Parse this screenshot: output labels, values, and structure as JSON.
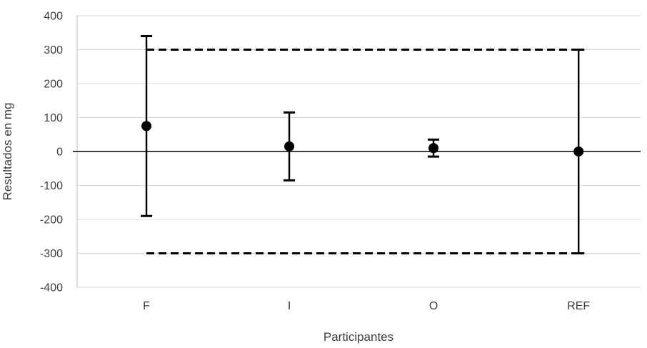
{
  "figure": {
    "background": "#ffffff"
  },
  "chart_data": {
    "type": "scatter",
    "subtype": "error-bar-plot",
    "title": "",
    "xlabel": "Participantes",
    "ylabel": "Resultados en mg",
    "categories": [
      "F",
      "I",
      "O",
      "REF"
    ],
    "points": [
      {
        "category": "F",
        "value": 75,
        "error_high": 340,
        "error_low": -190
      },
      {
        "category": "I",
        "value": 15,
        "error_high": 115,
        "error_low": -85
      },
      {
        "category": "O",
        "value": 10,
        "error_high": 35,
        "error_low": -15
      },
      {
        "category": "REF",
        "value": 0,
        "error_high": 300,
        "error_low": -300
      }
    ],
    "reference_lines": [
      {
        "value": 300,
        "style": "dashed"
      },
      {
        "value": -300,
        "style": "dashed"
      }
    ],
    "zero_line": true,
    "ylim": [
      -400,
      400
    ],
    "yticks": [
      400,
      300,
      200,
      100,
      0,
      -100,
      -200,
      -300,
      -400
    ],
    "ytick_interval": 100,
    "grid": true,
    "legend": false,
    "marker": "filled-circle",
    "colors": {
      "marker": "#000000",
      "error_bar": "#000000",
      "reference_line": "#000000",
      "zero_line": "#000000",
      "gridline": "#d9d9d9",
      "axis_line": "#bfbfbf",
      "text": "#3d3d3d",
      "background": "#ffffff"
    }
  }
}
